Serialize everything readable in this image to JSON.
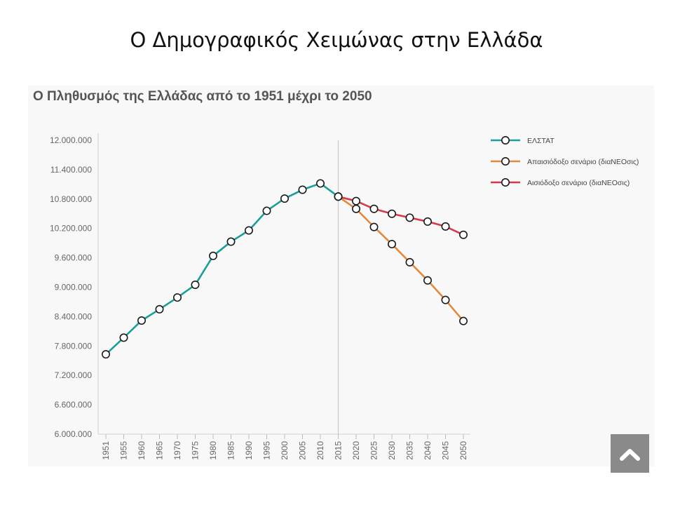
{
  "slide": {
    "title": "Ο Δημογραφικός Χειμώνας στην Ελλάδα"
  },
  "chart_data": {
    "type": "line",
    "title": "Ο Πληθυσμός της Ελλάδας από το 1951 μέχρι το 2050",
    "xlabel": "",
    "ylabel": "",
    "x": [
      1951,
      1955,
      1960,
      1965,
      1970,
      1975,
      1980,
      1985,
      1990,
      1995,
      2000,
      2005,
      2010,
      2015,
      2020,
      2025,
      2030,
      2035,
      2040,
      2045,
      2050
    ],
    "ylim": [
      6000000,
      12000000
    ],
    "y_ticks": [
      "6.000.000",
      "6.600.000",
      "7.200.000",
      "7.800.000",
      "8.400.000",
      "9.000.000",
      "9.600.000",
      "10.200.000",
      "10.800.000",
      "11.400.000",
      "12.000.000"
    ],
    "legend_position": "top-right",
    "grid": false,
    "reference_line_x": 2015,
    "series": [
      {
        "name": "ΕΛΣΤΑΤ",
        "color": "#1a9e9a",
        "x": [
          1951,
          1955,
          1960,
          1965,
          1970,
          1975,
          1980,
          1985,
          1990,
          1995,
          2000,
          2005,
          2010,
          2015
        ],
        "values": [
          7630000,
          7970000,
          8320000,
          8550000,
          8790000,
          9050000,
          9640000,
          9930000,
          10160000,
          10560000,
          10810000,
          10990000,
          11120000,
          10850000
        ]
      },
      {
        "name": "Απαισιόδοξο σενάριο (διαΝΕΟσις)",
        "color": "#e0893f",
        "x": [
          2015,
          2020,
          2025,
          2030,
          2035,
          2040,
          2045,
          2050
        ],
        "values": [
          10850000,
          10600000,
          10230000,
          9880000,
          9510000,
          9140000,
          8740000,
          8310000
        ]
      },
      {
        "name": "Αισιόδοξο σενάριο (διαΝΕΟσις)",
        "color": "#d8394a",
        "x": [
          2015,
          2020,
          2025,
          2030,
          2035,
          2040,
          2045,
          2050
        ],
        "values": [
          10850000,
          10760000,
          10600000,
          10500000,
          10420000,
          10340000,
          10240000,
          10070000
        ]
      }
    ]
  },
  "scroll_top": {
    "icon": "chevron-up-icon",
    "color": "#8a8a8a"
  }
}
